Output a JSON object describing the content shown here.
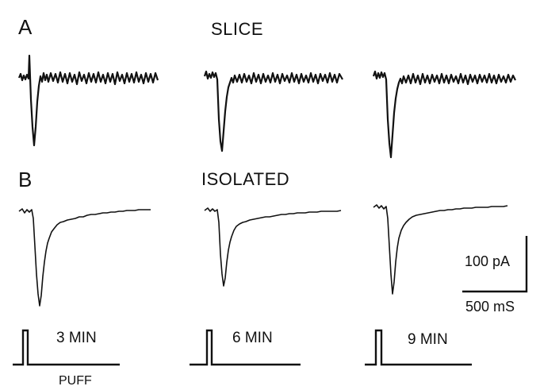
{
  "panels": {
    "a": {
      "letter": "A",
      "title": "SLICE"
    },
    "b": {
      "letter": "B",
      "title": "ISOLATED"
    }
  },
  "timepoints": [
    "3 MIN",
    "6 MIN",
    "9 MIN"
  ],
  "scale_bar": {
    "amplitude": "100 pA",
    "time": "500 mS"
  },
  "stimulus": {
    "label": "PUFF"
  },
  "colors": {
    "trace": "#111111",
    "background": "#ffffff"
  }
}
